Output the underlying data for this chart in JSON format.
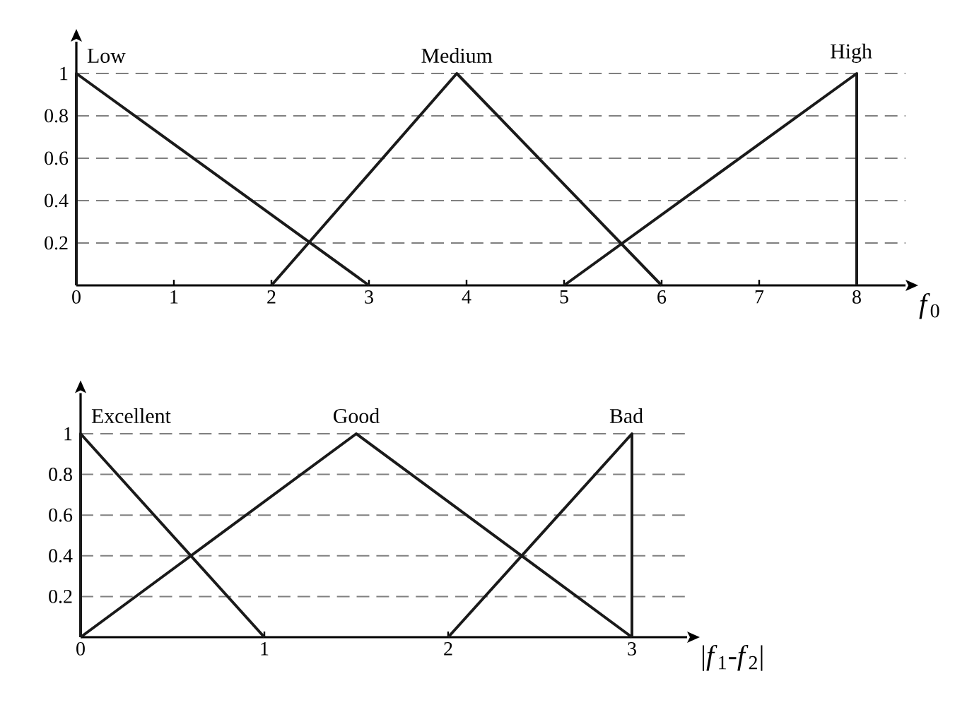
{
  "chart_data": [
    {
      "type": "line",
      "xlabel": "*f*$_{0}$",
      "xlim": [
        0,
        8.5
      ],
      "ylim": [
        0,
        1.15
      ],
      "xticks": [
        0,
        1,
        2,
        3,
        4,
        5,
        6,
        7,
        8
      ],
      "yticks": [
        0.2,
        0.4,
        0.6,
        0.8,
        1
      ],
      "grid": "y",
      "line_style": "solid",
      "marker": "none",
      "series": [
        {
          "name": "Low",
          "color": "#1a1a1a",
          "x": [
            0,
            0,
            3
          ],
          "values": [
            0,
            1,
            0
          ]
        },
        {
          "name": "Medium",
          "color": "#1a1a1a",
          "x": [
            2,
            3.9,
            6
          ],
          "values": [
            0,
            1,
            0
          ]
        },
        {
          "name": "High",
          "color": "#1a1a1a",
          "x": [
            5,
            8,
            8
          ],
          "values": [
            0,
            1,
            0
          ]
        }
      ]
    },
    {
      "type": "line",
      "xlabel": "|*f*$_{1}$-*f*$_{2}$|",
      "xlim": [
        0,
        3.3
      ],
      "ylim": [
        0,
        1.2
      ],
      "xticks": [
        0,
        1,
        2,
        3
      ],
      "yticks": [
        0.2,
        0.4,
        0.6,
        0.8,
        1
      ],
      "grid": "y",
      "line_style": "solid",
      "marker": "none",
      "series": [
        {
          "name": "Excellent",
          "color": "#1a1a1a",
          "x": [
            0,
            0,
            1
          ],
          "values": [
            0,
            1,
            0
          ]
        },
        {
          "name": "Good",
          "color": "#1a1a1a",
          "x": [
            0,
            1.5,
            3
          ],
          "values": [
            0,
            1,
            0
          ]
        },
        {
          "name": "Bad",
          "color": "#1a1a1a",
          "x": [
            2,
            3,
            3
          ],
          "values": [
            0,
            1,
            0
          ]
        }
      ]
    }
  ]
}
